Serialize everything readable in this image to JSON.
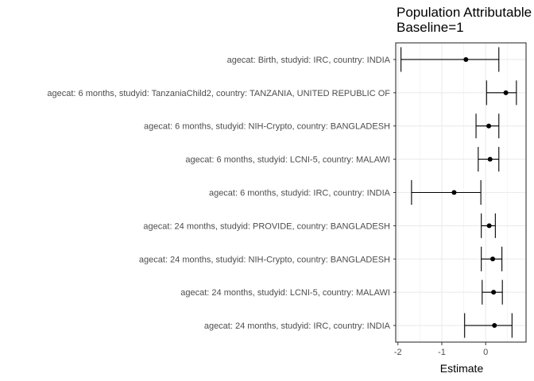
{
  "chart_data": {
    "type": "forest",
    "title": "Population Attributable",
    "subtitle": "Baseline=1",
    "xlabel": "Estimate",
    "ylabel": "",
    "xlim": [
      -2.05,
      0.92
    ],
    "xticks": [
      -2,
      -1,
      0
    ],
    "xtick_labels": [
      "-2",
      "-1",
      "0"
    ],
    "grid": true,
    "categories": [
      "agecat: Birth, studyid: IRC, country: INDIA",
      "agecat: 6 months, studyid: TanzaniaChild2, country: TANZANIA, UNITED REPUBLIC OF",
      "agecat: 6 months, studyid: NIH-Crypto, country: BANGLADESH",
      "agecat: 6 months, studyid: LCNI-5, country: MALAWI",
      "agecat: 6 months, studyid: IRC, country: INDIA",
      "agecat: 24 months, studyid: PROVIDE, country: BANGLADESH",
      "agecat: 24 months, studyid: NIH-Crypto, country: BANGLADESH",
      "agecat: 24 months, studyid: LCNI-5, country: MALAWI",
      "agecat: 24 months, studyid: IRC, country: INDIA"
    ],
    "estimates": [
      -0.45,
      0.46,
      0.07,
      0.1,
      -0.72,
      0.08,
      0.16,
      0.18,
      0.2
    ],
    "ci_lower": [
      -1.93,
      0.02,
      -0.22,
      -0.17,
      -1.69,
      -0.1,
      -0.1,
      -0.08,
      -0.48
    ],
    "ci_upper": [
      0.3,
      0.7,
      0.3,
      0.3,
      -0.11,
      0.22,
      0.37,
      0.38,
      0.6
    ],
    "colors": {
      "mark": "#000000",
      "grid": "#ebebeb",
      "panel_border": "#333333",
      "label": "#4d4d4d"
    }
  }
}
